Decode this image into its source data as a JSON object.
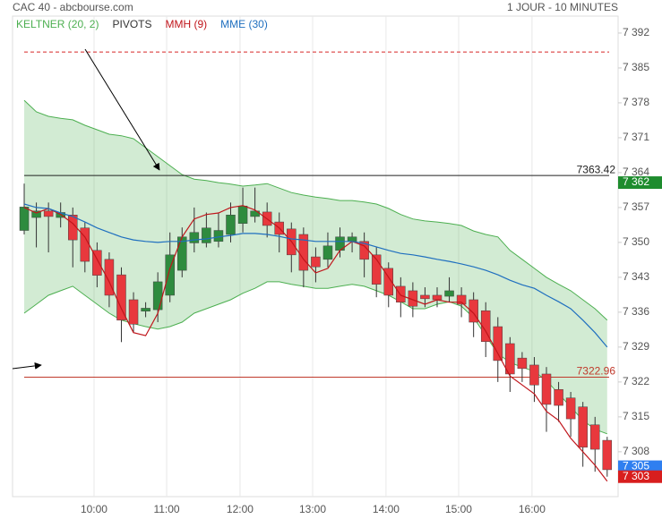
{
  "chart_data": {
    "type": "candlestick",
    "title": "CAC 40 - abcbourse.com",
    "subtitle": "1 JOUR - 10 MINUTES",
    "xlim": [
      -0.96,
      48.9
    ],
    "xticks": [
      {
        "value": 5.75,
        "label": "10:00"
      },
      {
        "value": 11.73,
        "label": "11:00"
      },
      {
        "value": 17.77,
        "label": "12:00"
      },
      {
        "value": 23.75,
        "label": "13:00"
      },
      {
        "value": 29.79,
        "label": "14:00"
      },
      {
        "value": 35.77,
        "label": "15:00"
      },
      {
        "value": 41.81,
        "label": "16:00"
      }
    ],
    "ylim": [
      7299,
      7395.4
    ],
    "yticks": [
      {
        "value": 7392,
        "label": "7 392"
      },
      {
        "value": 7385,
        "label": "7 385"
      },
      {
        "value": 7378,
        "label": "7 378"
      },
      {
        "value": 7371,
        "label": "7 371"
      },
      {
        "value": 7364,
        "label": "7 364"
      },
      {
        "value": 7357,
        "label": "7 357"
      },
      {
        "value": 7350,
        "label": "7 350"
      },
      {
        "value": 7343,
        "label": "7 343"
      },
      {
        "value": 7336,
        "label": "7 336"
      },
      {
        "value": 7329,
        "label": "7 329"
      },
      {
        "value": 7322,
        "label": "7 322"
      },
      {
        "value": 7315,
        "label": "7 315"
      },
      {
        "value": 7308,
        "label": "7 308"
      }
    ],
    "grid": "x",
    "up_color": "#2e8b3e",
    "down_color": "#e8383d",
    "candles": {
      "open": [
        7352.4,
        7355,
        7356.3,
        7355,
        7355.5,
        7352.9,
        7348.4,
        7346.6,
        7343.5,
        7338.5,
        7336.2,
        7336.5,
        7339.4,
        7344.4,
        7349.9,
        7349.9,
        7350.2,
        7351.6,
        7353.8,
        7355.2,
        7356.1,
        7354.1,
        7352.7,
        7351.6,
        7347.1,
        7346.6,
        7348.4,
        7350.2,
        7350.2,
        7347.5,
        7344.8,
        7341.2,
        7340.3,
        7339.4,
        7339.4,
        7339.2,
        7339.4,
        7338.5,
        7336.3,
        7333.1,
        7329.7,
        7326.8,
        7325.4,
        7323.6,
        7320.5,
        7318.8,
        7317,
        7313.4,
        7310.3
      ],
      "high": [
        7361.8,
        7358,
        7358,
        7358,
        7357,
        7354,
        7350,
        7348,
        7345,
        7340,
        7338,
        7344,
        7352,
        7353,
        7357,
        7356,
        7356,
        7358,
        7361,
        7361,
        7358,
        7356,
        7354,
        7353,
        7349,
        7352,
        7353,
        7352,
        7352,
        7349,
        7346,
        7343,
        7342,
        7341,
        7341,
        7343,
        7341,
        7340,
        7338,
        7335,
        7331,
        7328,
        7327,
        7325,
        7322,
        7320,
        7318,
        7315,
        7311
      ],
      "low": [
        7351.6,
        7349,
        7348,
        7353,
        7345,
        7344,
        7341,
        7337,
        7330,
        7332,
        7335,
        7334,
        7338,
        7343,
        7348,
        7349,
        7349,
        7350,
        7352,
        7354,
        7351,
        7348,
        7344,
        7341,
        7342,
        7345,
        7347,
        7348,
        7343,
        7339,
        7337,
        7335,
        7335,
        7337,
        7337,
        7338,
        7335,
        7331,
        7327,
        7322,
        7320,
        7322,
        7318,
        7312,
        7314,
        7311,
        7305,
        7304,
        7303
      ],
      "close": [
        7357.1,
        7356.3,
        7355.2,
        7356,
        7350.5,
        7346.2,
        7343.4,
        7339.4,
        7334.4,
        7333.6,
        7336.8,
        7342.1,
        7347.5,
        7351.1,
        7352,
        7352.9,
        7352.4,
        7355.5,
        7357.3,
        7356.3,
        7353.4,
        7351.6,
        7347.5,
        7344.4,
        7345.1,
        7349.3,
        7351.1,
        7351.1,
        7346.6,
        7341.6,
        7339.4,
        7338,
        7337.2,
        7338.7,
        7338.5,
        7340.3,
        7337.6,
        7334,
        7330.1,
        7326.3,
        7323.6,
        7324.7,
        7321.4,
        7317.5,
        7317.3,
        7314.6,
        7308.9,
        7308.5,
        7304.4
      ]
    },
    "band": {
      "name": "KELTNER (20, 2)",
      "color": "#4caf50",
      "upper": [
        7378.5,
        7376.2,
        7375.3,
        7374.9,
        7374.6,
        7373.5,
        7372.6,
        7371.7,
        7371.4,
        7370.8,
        7369.0,
        7367.2,
        7365.4,
        7363.6,
        7362.7,
        7362.4,
        7362.0,
        7361.7,
        7361.3,
        7361.5,
        7361.8,
        7360.9,
        7360.0,
        7359.5,
        7359.1,
        7358.8,
        7358.4,
        7358.4,
        7358.1,
        7357.7,
        7356.8,
        7355.6,
        7354.7,
        7354.3,
        7354.1,
        7353.8,
        7353.4,
        7352.3,
        7351.6,
        7351.1,
        7348.4,
        7346.6,
        7344.8,
        7343.0,
        7341.6,
        7340.3,
        7338.5,
        7336.7,
        7334.4
      ],
      "lower": [
        7335.8,
        7337.6,
        7339.4,
        7340.3,
        7341.2,
        7339.4,
        7337.6,
        7335.8,
        7334.4,
        7333.7,
        7333.1,
        7332.6,
        7333.1,
        7334.0,
        7335.8,
        7336.7,
        7337.6,
        7338.5,
        7339.8,
        7340.8,
        7342.1,
        7342.1,
        7341.6,
        7341.2,
        7340.8,
        7340.8,
        7341.2,
        7341.6,
        7341.2,
        7340.3,
        7339.4,
        7338.1,
        7336.7,
        7336.7,
        7337.6,
        7338.1,
        7337.2,
        7334.9,
        7331.3,
        7327.7,
        7325.9,
        7325.0,
        7324.1,
        7322.3,
        7319.6,
        7317.0,
        7314.3,
        7312.5,
        7311.6
      ]
    },
    "pivots": {
      "name": "PIVOTS",
      "color": "#333333",
      "levels": [
        {
          "value": 7388.2,
          "color": "#d62728",
          "dashed": true,
          "label_shown": false
        },
        {
          "value": 7363.42,
          "color": "#222222",
          "dashed": false,
          "label_shown": true
        },
        {
          "value": 7322.96,
          "color": "#c0392b",
          "dashed": false,
          "label_shown": true
        }
      ]
    },
    "series": [
      {
        "name": "MMH (9)",
        "color": "#c0151b",
        "values": [
          7357.0,
          7355.9,
          7356.8,
          7355.6,
          7353.8,
          7351.1,
          7346.6,
          7342.1,
          7336.7,
          7331.9,
          7331.3,
          7335.8,
          7344.8,
          7351.1,
          7354.7,
          7355.6,
          7355.9,
          7357.0,
          7357.4,
          7356.5,
          7354.7,
          7352.9,
          7350.2,
          7346.6,
          7343.9,
          7344.8,
          7348.4,
          7350.2,
          7349.3,
          7346.6,
          7343.0,
          7339.4,
          7338.5,
          7337.6,
          7338.5,
          7338.0,
          7338.0,
          7335.8,
          7332.2,
          7327.7,
          7323.2,
          7321.4,
          7319.6,
          7316.1,
          7314.3,
          7310.7,
          7308.0,
          7305.3,
          7302.1
        ]
      },
      {
        "name": "MME (30)",
        "color": "#1f6fbf",
        "values": [
          7357.7,
          7357.0,
          7356.8,
          7355.9,
          7355.2,
          7354.1,
          7352.9,
          7352.0,
          7351.1,
          7350.5,
          7350.2,
          7350.0,
          7350.2,
          7350.2,
          7350.5,
          7350.7,
          7351.1,
          7351.4,
          7351.8,
          7351.8,
          7351.6,
          7351.2,
          7350.7,
          7350.5,
          7350.2,
          7350.2,
          7350.2,
          7350.2,
          7349.8,
          7349.1,
          7348.4,
          7347.8,
          7347.5,
          7347.1,
          7346.6,
          7346.2,
          7345.7,
          7345.1,
          7344.4,
          7343.5,
          7342.4,
          7341.5,
          7340.8,
          7339.4,
          7338.1,
          7336.7,
          7334.4,
          7331.9,
          7329.0
        ]
      }
    ],
    "price_markers": [
      {
        "value": 7362,
        "label": "7 362",
        "color": "#1e8c2e"
      },
      {
        "value": 7305,
        "label": "7 305",
        "color": "#2f7ff0"
      },
      {
        "value": 7303,
        "label": "7 303",
        "color": "#d81e1e"
      }
    ]
  }
}
